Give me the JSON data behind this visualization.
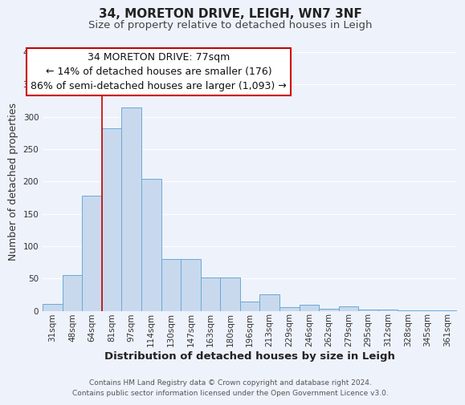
{
  "title": "34, MORETON DRIVE, LEIGH, WN7 3NF",
  "subtitle": "Size of property relative to detached houses in Leigh",
  "xlabel": "Distribution of detached houses by size in Leigh",
  "ylabel": "Number of detached properties",
  "footer_line1": "Contains HM Land Registry data © Crown copyright and database right 2024.",
  "footer_line2": "Contains public sector information licensed under the Open Government Licence v3.0.",
  "bin_labels": [
    "31sqm",
    "48sqm",
    "64sqm",
    "81sqm",
    "97sqm",
    "114sqm",
    "130sqm",
    "147sqm",
    "163sqm",
    "180sqm",
    "196sqm",
    "213sqm",
    "229sqm",
    "246sqm",
    "262sqm",
    "279sqm",
    "295sqm",
    "312sqm",
    "328sqm",
    "345sqm",
    "361sqm"
  ],
  "bar_values": [
    10,
    55,
    178,
    282,
    315,
    204,
    80,
    80,
    52,
    52,
    14,
    25,
    5,
    9,
    3,
    7,
    2,
    2,
    1,
    1,
    1
  ],
  "bar_color": "#c8d9ee",
  "bar_edge_color": "#6aaad4",
  "vline_color": "#cc0000",
  "vline_x_index": 2.5,
  "ylim": [
    0,
    400
  ],
  "yticks": [
    0,
    50,
    100,
    150,
    200,
    250,
    300,
    350,
    400
  ],
  "annotation_text_line1": "34 MORETON DRIVE: 77sqm",
  "annotation_text_line2": "← 14% of detached houses are smaller (176)",
  "annotation_text_line3": "86% of semi-detached houses are larger (1,093) →",
  "annotation_box_color": "#ffffff",
  "annotation_box_edge": "#cc0000",
  "bg_color": "#eef2fb",
  "grid_color": "#ffffff",
  "title_fontsize": 11,
  "subtitle_fontsize": 9.5,
  "xlabel_fontsize": 9.5,
  "ylabel_fontsize": 9,
  "tick_fontsize": 7.5,
  "annotation_fontsize": 9,
  "footer_fontsize": 6.5
}
